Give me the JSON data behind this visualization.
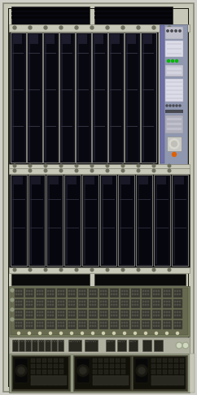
{
  "bg_color": "#d0d0c8",
  "frame_color": "#c8c8b8",
  "frame_edge": "#888878",
  "blade_dark": "#0a0a12",
  "blade_mid": "#141420",
  "blade_light": "#1e1e2a",
  "blade_stripe": "#282838",
  "blade_sep": "#d0d0c0",
  "sc_bg": "#9098b0",
  "sc_purple": "#7070a8",
  "sc_white": "#dcdce8",
  "sc_gray": "#b0b0c0",
  "sc_darkgray": "#686878",
  "led_green": "#00b800",
  "led_orange": "#e06000",
  "led_yellow": "#c8b000",
  "top_vent": "#080810",
  "sep_bar": "#a0a090",
  "iob_frame": "#7a8060",
  "iob_bg": "#686a50",
  "iob_cell": "#383830",
  "iob_cell_e": "#4a4a40",
  "iob_led": "#d0d0b0",
  "connector_bar": "#b0b0a0",
  "connector_block": "#282820",
  "psu_frame": "#909880",
  "psu_bg": "#282820",
  "psu_inner": "#181810",
  "psu_handle": "#0c0c08",
  "psu_grid": "#222218",
  "fig_w": 2.42,
  "fig_h": 4.86,
  "dpi": 100
}
